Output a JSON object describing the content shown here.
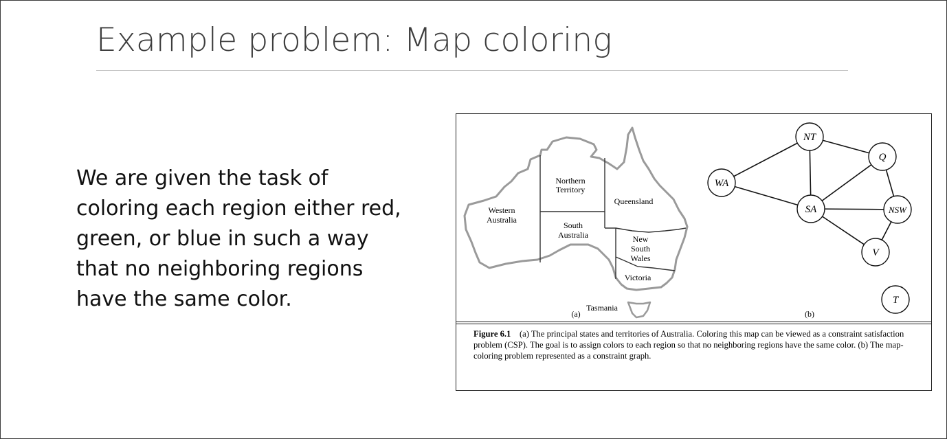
{
  "slide": {
    "title": "Example problem: Map coloring",
    "body": "We are given the task of coloring each region either red, green, or blue in such a way that no neighboring regions have the same color."
  },
  "figure": {
    "map_labels": {
      "western_australia": [
        "Western",
        "Australia"
      ],
      "northern_territory": [
        "Northern",
        "Territory"
      ],
      "queensland": [
        "Queensland"
      ],
      "south_australia": [
        "South",
        "Australia"
      ],
      "new_south_wales": [
        "New",
        "South",
        "Wales"
      ],
      "victoria": [
        "Victoria"
      ],
      "tasmania": [
        "Tasmania"
      ]
    },
    "panel_a": "(a)",
    "panel_b": "(b)",
    "graph": {
      "nodes": [
        {
          "id": "WA",
          "label": "WA"
        },
        {
          "id": "NT",
          "label": "NT"
        },
        {
          "id": "Q",
          "label": "Q"
        },
        {
          "id": "SA",
          "label": "SA"
        },
        {
          "id": "NSW",
          "label": "NSW"
        },
        {
          "id": "V",
          "label": "V"
        },
        {
          "id": "T",
          "label": "T"
        }
      ],
      "edges": [
        [
          "WA",
          "NT"
        ],
        [
          "WA",
          "SA"
        ],
        [
          "NT",
          "SA"
        ],
        [
          "NT",
          "Q"
        ],
        [
          "SA",
          "Q"
        ],
        [
          "SA",
          "NSW"
        ],
        [
          "SA",
          "V"
        ],
        [
          "Q",
          "NSW"
        ],
        [
          "NSW",
          "V"
        ]
      ]
    },
    "caption": {
      "lead": "Figure 6.1",
      "text": "(a) The principal states and territories of Australia. Coloring this map can be viewed as a constraint satisfaction problem (CSP). The goal is to assign colors to each region so that no neighboring regions have the same color. (b) The map-coloring problem represented as a constraint graph."
    }
  }
}
